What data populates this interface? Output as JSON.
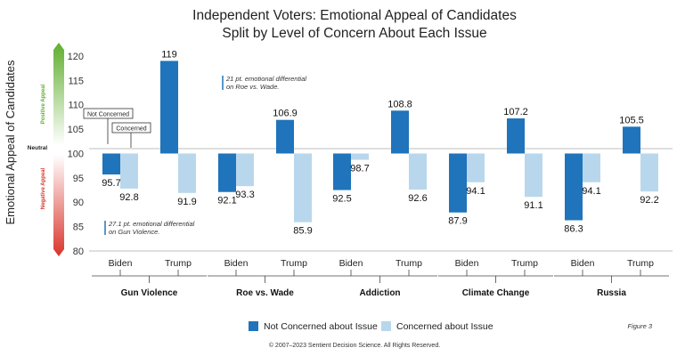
{
  "chart_data": {
    "type": "bar",
    "title": "Independent Voters: Emotional Appeal of Candidates",
    "subtitle": "Split by Level of Concern About Each Issue",
    "ylabel": "Emotional Appeal of Candidates",
    "ylim": [
      80,
      122
    ],
    "yticks": [
      80,
      85,
      90,
      95,
      100,
      105,
      110,
      115,
      120
    ],
    "baseline": 100,
    "grid": false,
    "legend_position": "bottom",
    "groups": [
      "Gun Violence",
      "Roe vs. Wade",
      "Addiction",
      "Climate Change",
      "Russia"
    ],
    "candidates": [
      "Biden",
      "Trump"
    ],
    "series": [
      {
        "name": "Not Concerned about Issue",
        "color": "#1f74bb",
        "values": [
          [
            95.7,
            119
          ],
          [
            92.1,
            106.9
          ],
          [
            92.5,
            108.8
          ],
          [
            87.9,
            107.2
          ],
          [
            86.3,
            105.5
          ]
        ]
      },
      {
        "name": "Concerned about Issue",
        "color": "#b9d7ec",
        "values": [
          [
            92.8,
            91.9
          ],
          [
            93.3,
            85.9
          ],
          [
            98.7,
            92.6
          ],
          [
            94.1,
            91.1
          ],
          [
            94.1,
            92.2
          ]
        ]
      }
    ],
    "value_labels": [
      [
        "95.7",
        "92.8",
        "119",
        "91.9"
      ],
      [
        "92.1",
        "93.3",
        "106.9",
        "85.9"
      ],
      [
        "92.5",
        "98.7",
        "108.8",
        "92.6"
      ],
      [
        "87.9",
        "94.1",
        "107.2",
        "91.1"
      ],
      [
        "86.3",
        "94.1",
        "105.5",
        "92.2"
      ]
    ],
    "annotations": {
      "roe_line1": "21 pt. emotional differential",
      "roe_line2": "on Roe vs. Wade.",
      "gun_line1": "27.1 pt. emotional differential",
      "gun_line2": "on Gun Violence.",
      "callout_not_concerned": "Not Concerned",
      "callout_concerned": "Concerned"
    },
    "scale_labels": {
      "positive": "Positive Appeal",
      "neutral": "Neutral",
      "negative": "Negative Appeal"
    }
  },
  "figure_label": "Figure 3",
  "copyright": "© 2007–2023 Sentient Decision Science. All Rights Reserved."
}
